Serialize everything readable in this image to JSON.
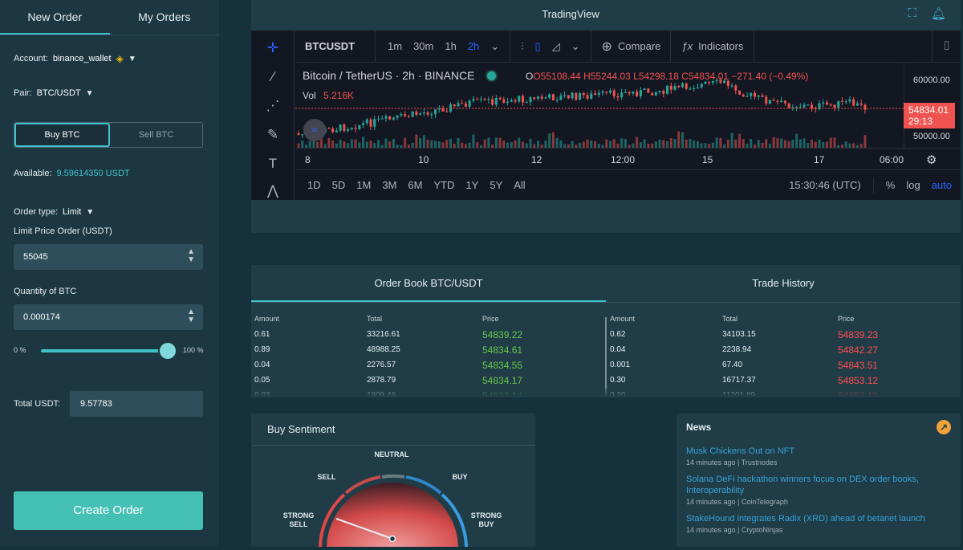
{
  "order_panel": {
    "tabs": [
      "New Order",
      "My Orders"
    ],
    "account_label": "Account:",
    "account_value": "binance_wallet",
    "pair_label": "Pair:",
    "pair_value": "BTC/USDT",
    "buy_label": "Buy BTC",
    "sell_label": "Sell BTC",
    "available_label": "Available:",
    "available_value": "9.59614350 USDT",
    "order_type_label": "Order type:",
    "order_type_value": "Limit",
    "limit_price_label": "Limit Price Order (USDT)",
    "limit_price_value": "55045",
    "quantity_label": "Quantity of BTC",
    "quantity_value": "0.000174",
    "slider_min": "0 %",
    "slider_max": "100 %",
    "slider_level": 1.0,
    "total_label": "Total USDT:",
    "total_value": "9.57783",
    "create_label": "Create Order"
  },
  "tradingview": {
    "title": "TradingView",
    "symbol": "BTCUSDT",
    "intervals": [
      "1m",
      "30m",
      "1h",
      "2h"
    ],
    "active_interval": "2h",
    "compare_label": "Compare",
    "indicators_label": "Indicators",
    "legend_title": "Bitcoin / TetherUS · 2h · BINANCE",
    "open": "O55108.44",
    "high": "H55244.03",
    "low": "L54298.18",
    "close": "C54834.01",
    "change": "−271.40 (−0.49%)",
    "vol_label": "Vol",
    "vol_value": "5.216K",
    "price_labels": [
      "60000.00",
      "50000.00"
    ],
    "last_price": "54834.01",
    "countdown": "29:13",
    "x_labels": [
      "8",
      "10",
      "12",
      "12:00",
      "15",
      "17",
      "06:00"
    ],
    "ranges": [
      "1D",
      "5D",
      "1M",
      "3M",
      "6M",
      "YTD",
      "1Y",
      "5Y",
      "All"
    ],
    "time": "15:30:46 (UTC)",
    "percent_label": "%",
    "log_label": "log",
    "auto_label": "auto",
    "up_color": "#26a69a",
    "down_color": "#ef5350"
  },
  "order_book": {
    "tabs": [
      "Order Book BTC/USDT",
      "Trade History"
    ],
    "headers": [
      "Amount",
      "Total",
      "Price"
    ],
    "bids": [
      [
        "0.61",
        "33216.61",
        "54839.22"
      ],
      [
        "0.89",
        "48988.25",
        "54834.61"
      ],
      [
        "0.04",
        "2276.57",
        "54834.55"
      ],
      [
        "0.05",
        "2878.79",
        "54834.17"
      ],
      [
        "0.03",
        "1809.46",
        "54832.14"
      ]
    ],
    "asks": [
      [
        "0.62",
        "34103.15",
        "54839.23"
      ],
      [
        "0.04",
        "2238.94",
        "54842.27"
      ],
      [
        "0.001",
        "67.40",
        "54843.51"
      ],
      [
        "0.30",
        "16717.37",
        "54853.12"
      ],
      [
        "0.20",
        "11201.89",
        "54853.13"
      ]
    ]
  },
  "sentiment": {
    "title": "Buy Sentiment",
    "labels": {
      "neutral": "NEUTRAL",
      "sell": "SELL",
      "buy": "BUY",
      "strong_sell": "STRONG SELL",
      "strong_buy": "STRONG BUY"
    }
  },
  "news": {
    "title": "News",
    "items": [
      {
        "title": "Musk Chickens Out on NFT",
        "meta": "14 minutes ago | Trustnodes"
      },
      {
        "title": "Solana DeFi hackathon winners focus on DEX order books, Interoperability",
        "meta": "14 minutes ago | CoinTelegraph"
      },
      {
        "title": "StakeHound integrates Radix (XRD) ahead of betanet launch",
        "meta": "14 minutes ago | CryptoNinjas"
      }
    ]
  }
}
